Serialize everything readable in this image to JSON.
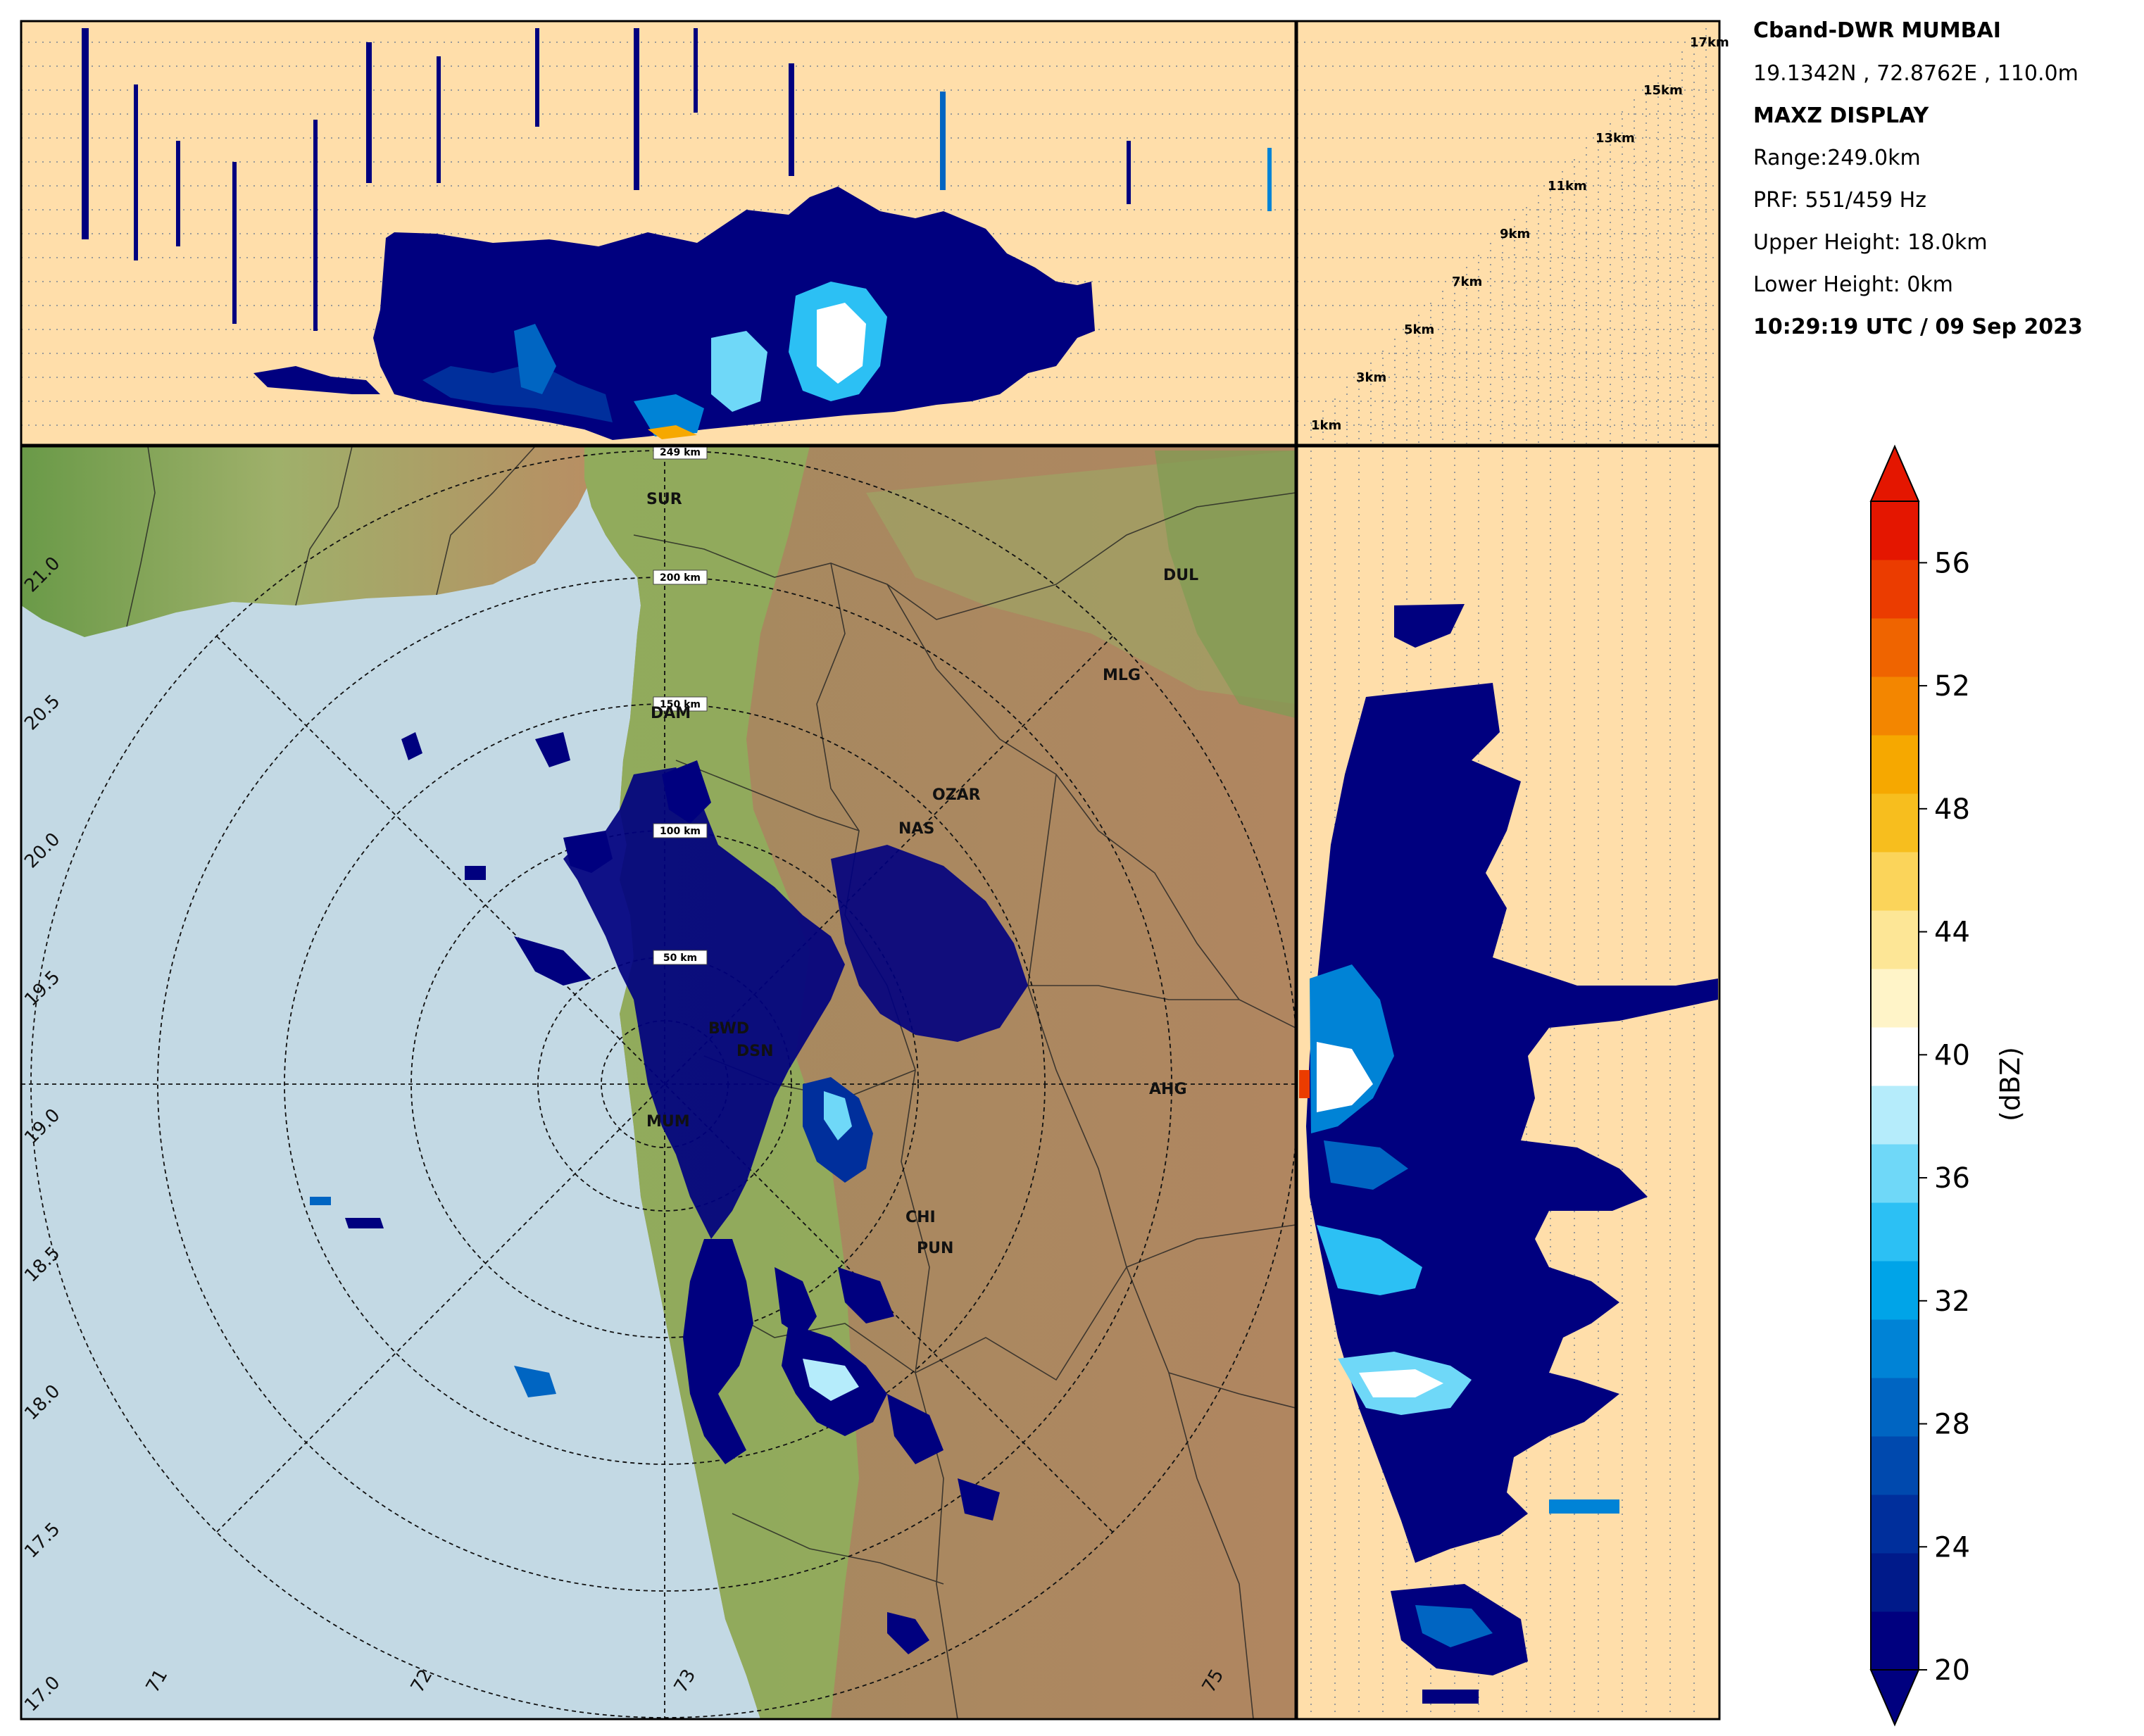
{
  "info": {
    "station": "Cband-DWR MUMBAI",
    "coords": "19.1342N , 72.8762E , 110.0m",
    "product": "MAXZ DISPLAY",
    "range": "Range:249.0km",
    "prf": "PRF: 551/459 Hz",
    "upper": "Upper Height: 18.0km",
    "lower": "Lower Height: 0km",
    "time": "10:29:19 UTC / 09 Sep 2023"
  },
  "height_labels": [
    "17km",
    "15km",
    "13km",
    "11km",
    "9km",
    "7km",
    "5km",
    "3km",
    "1km"
  ],
  "range_labels": [
    "249 km",
    "200 km",
    "150 km",
    "100 km",
    "50 km"
  ],
  "lat_labels": [
    "21.0",
    "20.5",
    "20.0",
    "19.5",
    "19.0",
    "18.5",
    "18.0",
    "17.5",
    "17.0"
  ],
  "lon_labels": [
    "71",
    "72",
    "73",
    "75"
  ],
  "cities": [
    {
      "name": "SUR"
    },
    {
      "name": "DUL"
    },
    {
      "name": "MLG"
    },
    {
      "name": "DAM"
    },
    {
      "name": "OZAR"
    },
    {
      "name": "NAS"
    },
    {
      "name": "BWD"
    },
    {
      "name": "DSN"
    },
    {
      "name": "AHG"
    },
    {
      "name": "MUM"
    },
    {
      "name": "CHI"
    },
    {
      "name": "PUN"
    }
  ],
  "colorbar": {
    "label": "(dBZ)",
    "ticks": [
      "56",
      "52",
      "48",
      "44",
      "40",
      "36",
      "32",
      "28",
      "24",
      "20"
    ],
    "min": 20,
    "max": 58,
    "colors": [
      "#00007f",
      "#001a8a",
      "#002f9c",
      "#0049ae",
      "#0065c2",
      "#0083d6",
      "#00a4e8",
      "#2cc0f4",
      "#6fd8f8",
      "#b5ecfb",
      "#ffffff",
      "#fff4c8",
      "#fde696",
      "#fbd45a",
      "#f7be1e",
      "#f6a800",
      "#f38600",
      "#ef6400",
      "#eb3c00",
      "#e41600"
    ],
    "accent_land_high": "#a67c52",
    "accent_land_low": "#5f8f3f",
    "accent_sea": "#c3d9e4",
    "accent_panel": "#ffdeaa"
  }
}
